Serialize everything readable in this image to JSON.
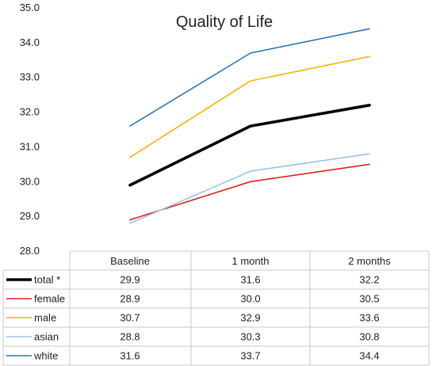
{
  "chart_data": {
    "type": "line",
    "title": "Quality of Life",
    "xlabel": "",
    "ylabel": "",
    "categories": [
      "Baseline",
      "1 month",
      "2 months"
    ],
    "ylim": [
      28.0,
      35.0
    ],
    "yticks": [
      "35.0",
      "34.0",
      "33.0",
      "32.0",
      "31.0",
      "30.0",
      "29.0",
      "28.0"
    ],
    "grid": false,
    "legend": "data-table below plot",
    "series": [
      {
        "name": "total *",
        "values": [
          29.9,
          31.6,
          32.2
        ],
        "labels": [
          "29.9",
          "31.6",
          "32.2"
        ],
        "color": "#000000",
        "emphasis": true
      },
      {
        "name": "female",
        "values": [
          28.9,
          30.0,
          30.5
        ],
        "labels": [
          "28.9",
          "30.0",
          "30.5"
        ],
        "color": "#e02020",
        "emphasis": false
      },
      {
        "name": "male",
        "values": [
          30.7,
          32.9,
          33.6
        ],
        "labels": [
          "30.7",
          "32.9",
          "33.6"
        ],
        "color": "#f5b400",
        "emphasis": false
      },
      {
        "name": "asian",
        "values": [
          28.8,
          30.3,
          30.8
        ],
        "labels": [
          "28.8",
          "30.3",
          "30.8"
        ],
        "color": "#9dc3e6",
        "emphasis": false
      },
      {
        "name": "white",
        "values": [
          31.6,
          33.7,
          34.4
        ],
        "labels": [
          "31.6",
          "33.7",
          "34.4"
        ],
        "color": "#2e75b6",
        "emphasis": false
      }
    ]
  }
}
